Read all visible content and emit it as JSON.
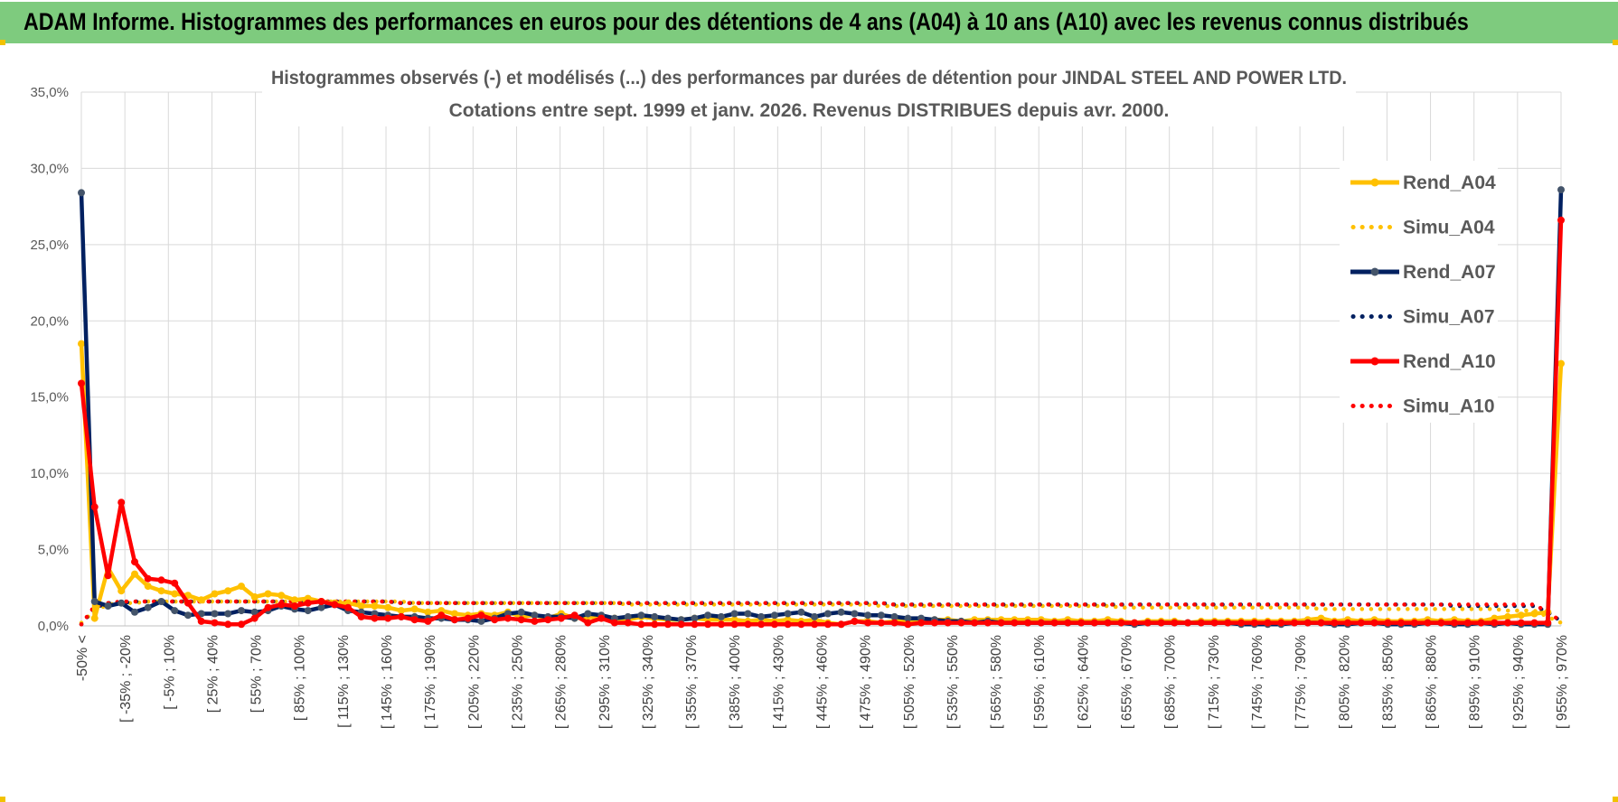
{
  "header": {
    "title": "ADAM Informe. Histogrammes des performances en euros pour des détentions de 4 ans (A04) à 10 ans (A10) avec les revenus connus distribués"
  },
  "chart_data": {
    "type": "line",
    "title": "Histogrammes observés (-) et modélisés (...) des performances par durées de détention pour JINDAL STEEL AND POWER LTD.",
    "subtitle": "Cotations entre sept. 1999 et janv. 2026. Revenus DISTRIBUES depuis avr. 2000.",
    "xlabel": "",
    "ylabel": "",
    "ylim": [
      0,
      35
    ],
    "yticks": [
      "0,0%",
      "5,0%",
      "10,0%",
      "15,0%",
      "20,0%",
      "25,0%",
      "30,0%",
      "35,0%"
    ],
    "grid": true,
    "legend_position": "right",
    "x_tick_labels": [
      "-50% <",
      "[ -35% ; -20%",
      "[ -5% ; 10%",
      "[ 25% ; 40%",
      "[ 55% ; 70%",
      "[ 85% ; 100%",
      "[ 115% ; 130%",
      "[ 145% ; 160%",
      "[ 175% ; 190%",
      "[ 205% ; 220%",
      "[ 235% ; 250%",
      "[ 265% ; 280%",
      "[ 295% ; 310%",
      "[ 325% ; 340%",
      "[ 355% ; 370%",
      "[ 385% ; 400%",
      "[ 415% ; 430%",
      "[ 445% ; 460%",
      "[ 475% ; 490%",
      "[ 505% ; 520%",
      "[ 535% ; 550%",
      "[ 565% ; 580%",
      "[ 595% ; 610%",
      "[ 625% ; 640%",
      "[ 655% ; 670%",
      "[ 685% ; 700%",
      "[ 715% ; 730%",
      "[ 745% ; 760%",
      "[ 775% ; 790%",
      "[ 805% ; 820%",
      "[ 835% ; 850%",
      "[ 865% ; 880%",
      "[ 895% ; 910%",
      "[ 925% ; 940%",
      "[ 955% ; 970%"
    ],
    "series": [
      {
        "name": "Rend_A04",
        "color": "#FFC000",
        "style": "solid",
        "values": [
          18.5,
          0.5,
          3.8,
          2.3,
          3.4,
          2.6,
          2.3,
          2.1,
          2.0,
          1.7,
          2.1,
          2.3,
          2.6,
          1.9,
          2.1,
          2.0,
          1.7,
          1.8,
          1.6,
          1.5,
          1.5,
          1.3,
          1.3,
          1.2,
          1.0,
          1.1,
          0.9,
          1.0,
          0.8,
          0.7,
          0.8,
          0.7,
          0.9,
          0.6,
          0.7,
          0.5,
          0.8,
          0.5,
          0.6,
          0.5,
          0.5,
          0.4,
          0.6,
          0.5,
          0.4,
          0.4,
          0.5,
          0.4,
          0.4,
          0.4,
          0.3,
          0.4,
          0.3,
          0.4,
          0.3,
          0.4,
          0.2,
          0.1,
          0.3,
          0.3,
          0.2,
          0.3,
          0.3,
          0.4,
          0.4,
          0.4,
          0.3,
          0.4,
          0.4,
          0.4,
          0.4,
          0.4,
          0.4,
          0.3,
          0.4,
          0.3,
          0.3,
          0.4,
          0.3,
          0.2,
          0.3,
          0.3,
          0.3,
          0.2,
          0.3,
          0.3,
          0.3,
          0.3,
          0.3,
          0.3,
          0.3,
          0.3,
          0.4,
          0.5,
          0.3,
          0.4,
          0.3,
          0.4,
          0.3,
          0.3,
          0.3,
          0.4,
          0.3,
          0.4,
          0.3,
          0.3,
          0.5,
          0.6,
          0.7,
          0.8,
          0.9,
          17.2
        ]
      },
      {
        "name": "Simu_A04",
        "color": "#FFC000",
        "style": "dotted",
        "values": [
          0.2,
          1.0,
          1.4,
          1.5,
          1.5,
          1.6,
          1.6,
          1.6,
          1.6,
          1.6,
          1.6,
          1.6,
          1.6,
          1.6,
          1.6,
          1.6,
          1.6,
          1.6,
          1.6,
          1.6,
          1.6,
          1.6,
          1.6,
          1.6,
          1.6,
          1.5,
          1.5,
          1.5,
          1.5,
          1.5,
          1.5,
          1.5,
          1.5,
          1.5,
          1.5,
          1.5,
          1.5,
          1.5,
          1.5,
          1.5,
          1.5,
          1.4,
          1.4,
          1.4,
          1.4,
          1.4,
          1.4,
          1.4,
          1.4,
          1.4,
          1.4,
          1.4,
          1.4,
          1.4,
          1.4,
          1.4,
          1.4,
          1.4,
          1.4,
          1.4,
          1.3,
          1.3,
          1.3,
          1.3,
          1.3,
          1.3,
          1.3,
          1.3,
          1.3,
          1.3,
          1.3,
          1.3,
          1.3,
          1.3,
          1.3,
          1.3,
          1.3,
          1.3,
          1.2,
          1.2,
          1.2,
          1.2,
          1.2,
          1.2,
          1.2,
          1.2,
          1.2,
          1.2,
          1.2,
          1.2,
          1.2,
          1.2,
          1.2,
          1.1,
          1.1,
          1.1,
          1.1,
          1.1,
          1.1,
          1.1,
          1.1,
          1.1,
          1.1,
          1.1,
          1.1,
          1.1,
          1.1,
          1.0,
          1.0,
          1.0,
          0.6,
          0.2
        ]
      },
      {
        "name": "Rend_A07",
        "color": "#002060",
        "style": "solid",
        "values": [
          28.4,
          1.6,
          1.3,
          1.5,
          0.9,
          1.2,
          1.6,
          1.0,
          0.7,
          0.8,
          0.8,
          0.8,
          1.0,
          0.9,
          1.0,
          1.3,
          1.1,
          1.0,
          1.2,
          1.4,
          1.0,
          0.9,
          0.8,
          0.7,
          0.6,
          0.6,
          0.5,
          0.5,
          0.4,
          0.4,
          0.3,
          0.5,
          0.8,
          0.9,
          0.7,
          0.6,
          0.6,
          0.5,
          0.8,
          0.7,
          0.5,
          0.6,
          0.7,
          0.6,
          0.5,
          0.4,
          0.5,
          0.7,
          0.6,
          0.8,
          0.8,
          0.6,
          0.7,
          0.8,
          0.9,
          0.6,
          0.8,
          0.9,
          0.8,
          0.7,
          0.7,
          0.6,
          0.5,
          0.5,
          0.4,
          0.3,
          0.3,
          0.2,
          0.3,
          0.2,
          0.2,
          0.2,
          0.2,
          0.2,
          0.2,
          0.2,
          0.2,
          0.2,
          0.2,
          0.1,
          0.2,
          0.2,
          0.2,
          0.2,
          0.2,
          0.2,
          0.2,
          0.1,
          0.1,
          0.1,
          0.1,
          0.2,
          0.2,
          0.2,
          0.1,
          0.1,
          0.2,
          0.2,
          0.1,
          0.1,
          0.1,
          0.2,
          0.2,
          0.1,
          0.1,
          0.2,
          0.1,
          0.2,
          0.1,
          0.1,
          0.1,
          28.6
        ]
      },
      {
        "name": "Simu_A07",
        "color": "#002060",
        "style": "dotted",
        "values": [
          0.1,
          1.2,
          1.5,
          1.5,
          1.6,
          1.6,
          1.6,
          1.6,
          1.6,
          1.6,
          1.6,
          1.6,
          1.6,
          1.6,
          1.6,
          1.6,
          1.6,
          1.6,
          1.6,
          1.6,
          1.6,
          1.6,
          1.6,
          1.6,
          1.5,
          1.5,
          1.5,
          1.5,
          1.5,
          1.5,
          1.5,
          1.5,
          1.5,
          1.5,
          1.5,
          1.5,
          1.5,
          1.5,
          1.5,
          1.5,
          1.5,
          1.5,
          1.5,
          1.5,
          1.5,
          1.5,
          1.5,
          1.5,
          1.5,
          1.5,
          1.5,
          1.5,
          1.5,
          1.5,
          1.5,
          1.5,
          1.5,
          1.5,
          1.5,
          1.5,
          1.5,
          1.4,
          1.4,
          1.4,
          1.4,
          1.4,
          1.4,
          1.4,
          1.4,
          1.4,
          1.4,
          1.4,
          1.4,
          1.4,
          1.4,
          1.4,
          1.4,
          1.4,
          1.4,
          1.4,
          1.4,
          1.4,
          1.4,
          1.4,
          1.4,
          1.4,
          1.4,
          1.4,
          1.4,
          1.4,
          1.4,
          1.4,
          1.4,
          1.4,
          1.4,
          1.4,
          1.4,
          1.4,
          1.4,
          1.4,
          1.4,
          1.4,
          1.4,
          1.3,
          1.3,
          1.3,
          1.3,
          1.3,
          1.3,
          1.3,
          0.9,
          0.3
        ]
      },
      {
        "name": "Rend_A10",
        "color": "#FF0000",
        "style": "solid",
        "values": [
          15.9,
          7.8,
          3.3,
          8.1,
          4.2,
          3.1,
          3.0,
          2.8,
          1.5,
          0.3,
          0.2,
          0.1,
          0.1,
          0.5,
          1.2,
          1.4,
          1.3,
          1.5,
          1.6,
          1.4,
          1.2,
          0.6,
          0.5,
          0.5,
          0.6,
          0.4,
          0.3,
          0.7,
          0.4,
          0.5,
          0.7,
          0.4,
          0.5,
          0.4,
          0.3,
          0.4,
          0.5,
          0.7,
          0.2,
          0.5,
          0.2,
          0.2,
          0.1,
          0.1,
          0.1,
          0.1,
          0.1,
          0.1,
          0.1,
          0.1,
          0.1,
          0.1,
          0.1,
          0.1,
          0.1,
          0.1,
          0.1,
          0.1,
          0.3,
          0.2,
          0.2,
          0.2,
          0.1,
          0.2,
          0.2,
          0.2,
          0.2,
          0.2,
          0.2,
          0.2,
          0.2,
          0.2,
          0.2,
          0.2,
          0.2,
          0.2,
          0.2,
          0.2,
          0.2,
          0.2,
          0.2,
          0.2,
          0.2,
          0.2,
          0.2,
          0.2,
          0.2,
          0.2,
          0.2,
          0.2,
          0.2,
          0.2,
          0.2,
          0.2,
          0.2,
          0.2,
          0.2,
          0.2,
          0.2,
          0.2,
          0.2,
          0.2,
          0.2,
          0.2,
          0.2,
          0.2,
          0.2,
          0.2,
          0.2,
          0.2,
          0.2,
          26.6
        ]
      },
      {
        "name": "Simu_A10",
        "color": "#FF0000",
        "style": "dotted",
        "values": [
          0.1,
          1.3,
          1.5,
          1.6,
          1.6,
          1.6,
          1.6,
          1.6,
          1.6,
          1.6,
          1.6,
          1.6,
          1.6,
          1.6,
          1.6,
          1.6,
          1.6,
          1.6,
          1.6,
          1.6,
          1.6,
          1.6,
          1.6,
          1.6,
          1.5,
          1.5,
          1.5,
          1.5,
          1.5,
          1.5,
          1.5,
          1.5,
          1.5,
          1.5,
          1.5,
          1.5,
          1.5,
          1.5,
          1.5,
          1.5,
          1.5,
          1.5,
          1.5,
          1.5,
          1.5,
          1.5,
          1.5,
          1.5,
          1.5,
          1.5,
          1.5,
          1.5,
          1.5,
          1.5,
          1.5,
          1.5,
          1.5,
          1.5,
          1.5,
          1.5,
          1.5,
          1.4,
          1.4,
          1.4,
          1.4,
          1.4,
          1.4,
          1.4,
          1.4,
          1.4,
          1.4,
          1.4,
          1.4,
          1.4,
          1.4,
          1.4,
          1.4,
          1.4,
          1.4,
          1.4,
          1.4,
          1.4,
          1.4,
          1.4,
          1.4,
          1.4,
          1.4,
          1.4,
          1.4,
          1.4,
          1.4,
          1.4,
          1.4,
          1.4,
          1.4,
          1.4,
          1.4,
          1.4,
          1.4,
          1.4,
          1.4,
          1.4,
          1.4,
          1.4,
          1.4,
          1.4,
          1.4,
          1.4,
          1.4,
          1.4,
          0.9,
          0.3
        ]
      }
    ]
  }
}
